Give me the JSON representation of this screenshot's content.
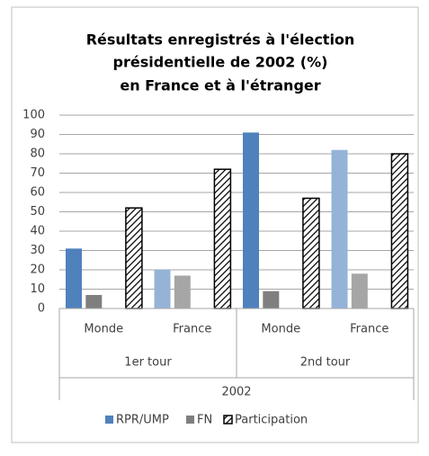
{
  "chart_data": {
    "type": "bar",
    "title": [
      "Résultats enregistrés à l'élection",
      "présidentielle de 2002 (%)",
      "en France et à l'étranger"
    ],
    "categories": [
      "Monde",
      "France",
      "Monde",
      "France"
    ],
    "groups": [
      {
        "name": "1er tour",
        "count": 2
      },
      {
        "name": "2nd tour",
        "count": 2
      }
    ],
    "supergroup": "2002",
    "series": [
      {
        "name": "RPR/UMP",
        "color": "#4f81bd",
        "colors": [
          "#4f81bd",
          "#95b3d7",
          "#4f81bd",
          "#95b3d7"
        ],
        "values": [
          31,
          20,
          91,
          82
        ]
      },
      {
        "name": "FN",
        "color": "#7f7f7f",
        "colors": [
          "#7f7f7f",
          "#a6a6a6",
          "#7f7f7f",
          "#a6a6a6"
        ],
        "values": [
          7,
          17,
          9,
          18
        ]
      },
      {
        "name": "Participation",
        "color": "#000000",
        "pattern": "hatch",
        "values": [
          52,
          72,
          57,
          80
        ]
      }
    ],
    "ylim": [
      0,
      100
    ],
    "yticks": [
      0,
      10,
      20,
      30,
      40,
      50,
      60,
      70,
      80,
      90,
      100
    ],
    "grid": true,
    "legend": "bottom"
  }
}
